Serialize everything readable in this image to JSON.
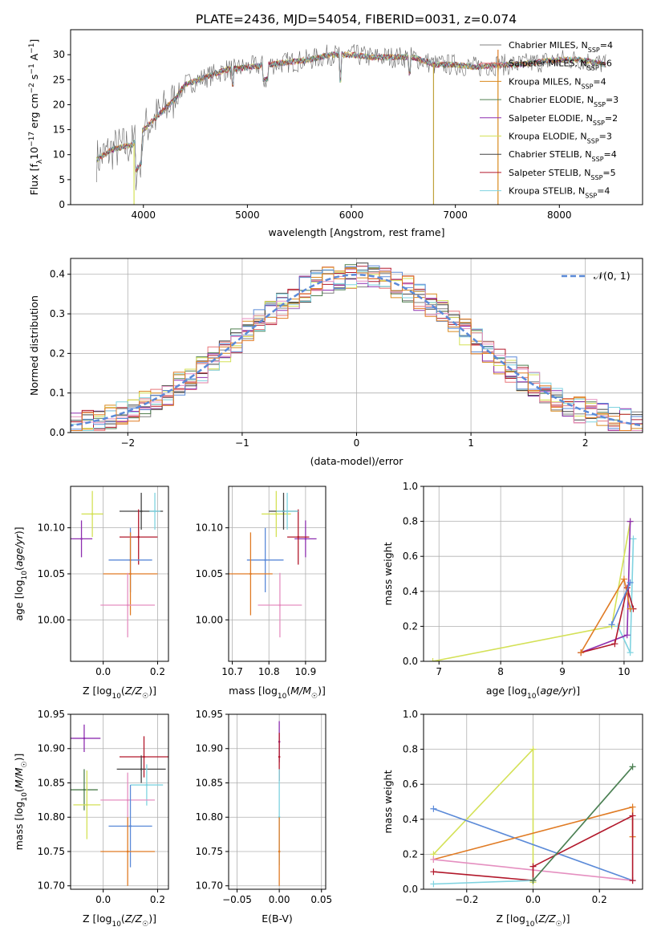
{
  "title": "PLATE=2436, MJD=54054, FIBERID=0031, z=0.074",
  "colors": {
    "Chabrier MILES": "#808080",
    "Salpeter MILES": "#e8777a",
    "Kroupa MILES": "#d98a1e",
    "Chabrier ELODIE": "#4f7f4f",
    "Salpeter ELODIE": "#8e2fb0",
    "Kroupa ELODIE": "#d4e157",
    "Chabrier STELIB": "#444444",
    "Salpeter STELIB": "#b2182b",
    "Kroupa STELIB": "#7fd3e0",
    "extra_blue": "#5b8ad8",
    "extra_orange": "#e07b24",
    "extra_pink": "#e58fc0"
  },
  "chart_data": [
    {
      "id": "spectrum",
      "type": "line",
      "title": "PLATE=2436, MJD=54054, FIBERID=0031, z=0.074",
      "xlabel": "wavelength [Angstrom, rest frame]",
      "ylabel": "Flux [f_λ 10^-17 erg cm^-2 s^-1 A^-1]",
      "xlim": [
        3300,
        8800
      ],
      "ylim": [
        0,
        35
      ],
      "xticks": [
        "4000",
        "5000",
        "6000",
        "7000",
        "8000"
      ],
      "yticks": [
        "0",
        "5",
        "10",
        "15",
        "20",
        "25",
        "30"
      ],
      "grid": false,
      "legend_position": "right",
      "legend": [
        {
          "label": "Chabrier MILES",
          "nssp": "4"
        },
        {
          "label": "Salpeter MILES",
          "nssp": "6"
        },
        {
          "label": "Kroupa MILES",
          "nssp": "4"
        },
        {
          "label": "Chabrier ELODIE",
          "nssp": "3"
        },
        {
          "label": "Salpeter ELODIE",
          "nssp": "2"
        },
        {
          "label": "Kroupa ELODIE",
          "nssp": "3"
        },
        {
          "label": "Chabrier STELIB",
          "nssp": "4"
        },
        {
          "label": "Salpeter STELIB",
          "nssp": "5"
        },
        {
          "label": "Kroupa STELIB",
          "nssp": "4"
        }
      ],
      "continuum": {
        "x": [
          3550,
          3700,
          3800,
          3900,
          4000,
          4100,
          4200,
          4300,
          4400,
          4600,
          4800,
          5000,
          5200,
          5400,
          5600,
          5800,
          6000,
          6200,
          6400,
          6600,
          6800,
          7000,
          7200,
          7400,
          7600,
          7800,
          8000,
          8200,
          8450
        ],
        "y": [
          9,
          11,
          11.5,
          12,
          15,
          17,
          19,
          21,
          24,
          25.5,
          27,
          27.5,
          28,
          28.5,
          29,
          30,
          30,
          29.5,
          29.5,
          29.5,
          28,
          28,
          27.5,
          28,
          28,
          28.5,
          29,
          29,
          28
        ]
      }
    },
    {
      "id": "residuals",
      "type": "area",
      "xlabel": "(data-model)/error",
      "ylabel": "Normed distribution",
      "xlim": [
        -2.5,
        2.5
      ],
      "ylim": [
        0,
        0.44
      ],
      "xticks": [
        "−2",
        "−1",
        "0",
        "1",
        "2"
      ],
      "yticks": [
        "0.0",
        "0.1",
        "0.2",
        "0.3",
        "0.4"
      ],
      "grid": true,
      "legend": "𝒩(0, 1)",
      "legend_position": "top-right"
    },
    {
      "id": "age-vs-Z",
      "type": "scatter",
      "xlabel": "Z [log10(Z/Z☉)]",
      "ylabel": "age [log10(age/yr)]",
      "xlim": [
        -0.12,
        0.24
      ],
      "ylim": [
        9.955,
        10.145
      ],
      "xticks": [
        "0.0",
        "0.2"
      ],
      "yticks": [
        "10.00",
        "10.05",
        "10.10"
      ],
      "grid": true,
      "points": [
        {
          "x": -0.04,
          "xerr": 0.04,
          "y": 10.115,
          "yerr": 0.025,
          "series": "Kroupa ELODIE"
        },
        {
          "x": -0.08,
          "xerr": 0.04,
          "y": 10.088,
          "yerr": 0.02,
          "series": "Salpeter ELODIE"
        },
        {
          "x": 0.14,
          "xerr": 0.08,
          "y": 10.118,
          "yerr": 0.02,
          "series": "Chabrier STELIB"
        },
        {
          "x": 0.13,
          "xerr": 0.07,
          "y": 10.09,
          "yerr": 0.03,
          "series": "Salpeter STELIB"
        },
        {
          "x": 0.1,
          "xerr": 0.08,
          "y": 10.065,
          "yerr": 0.035,
          "series": "extra_blue"
        },
        {
          "x": 0.1,
          "xerr": 0.1,
          "y": 10.05,
          "yerr": 0.045,
          "series": "extra_orange"
        },
        {
          "x": 0.09,
          "xerr": 0.1,
          "y": 10.016,
          "yerr": 0.035,
          "series": "extra_pink"
        },
        {
          "x": 0.19,
          "xerr": 0.02,
          "y": 10.118,
          "yerr": 0.02,
          "series": "Kroupa STELIB"
        }
      ]
    },
    {
      "id": "age-vs-mass",
      "type": "scatter",
      "xlabel": "mass [log10(M/M☉)]",
      "ylabel": "",
      "xlim": [
        10.69,
        10.955
      ],
      "ylim": [
        9.955,
        10.145
      ],
      "xticks": [
        "10.7",
        "10.8",
        "10.9"
      ],
      "yticks": [
        "10.00",
        "10.05",
        "10.10"
      ],
      "grid": true,
      "points": [
        {
          "x": 10.82,
          "xerr": 0.04,
          "y": 10.115,
          "yerr": 0.025,
          "series": "Kroupa ELODIE"
        },
        {
          "x": 10.9,
          "xerr": 0.03,
          "y": 10.088,
          "yerr": 0.02,
          "series": "Salpeter ELODIE"
        },
        {
          "x": 10.84,
          "xerr": 0.04,
          "y": 10.118,
          "yerr": 0.02,
          "series": "Chabrier STELIB"
        },
        {
          "x": 10.88,
          "xerr": 0.03,
          "y": 10.09,
          "yerr": 0.03,
          "series": "Salpeter STELIB"
        },
        {
          "x": 10.79,
          "xerr": 0.05,
          "y": 10.065,
          "yerr": 0.035,
          "series": "extra_blue"
        },
        {
          "x": 10.75,
          "xerr": 0.06,
          "y": 10.05,
          "yerr": 0.045,
          "series": "extra_orange"
        },
        {
          "x": 10.83,
          "xerr": 0.06,
          "y": 10.016,
          "yerr": 0.035,
          "series": "extra_pink"
        },
        {
          "x": 10.85,
          "xerr": 0.03,
          "y": 10.118,
          "yerr": 0.02,
          "series": "Kroupa STELIB"
        }
      ]
    },
    {
      "id": "weight-vs-age",
      "type": "line",
      "xlabel": "age [log10(age/yr)]",
      "ylabel": "mass weight",
      "xlim": [
        6.75,
        10.3
      ],
      "ylim": [
        0,
        1
      ],
      "xticks": [
        "7",
        "8",
        "9",
        "10"
      ],
      "yticks": [
        "0.0",
        "0.2",
        "0.4",
        "0.6",
        "0.8",
        "1.0"
      ],
      "grid": true,
      "series": [
        {
          "series": "Kroupa ELODIE",
          "x": [
            6.9,
            9.8,
            10.1
          ],
          "y": [
            0.0,
            0.2,
            0.8
          ]
        },
        {
          "series": "Kroupa STELIB",
          "x": [
            9.9,
            10.1,
            10.15
          ],
          "y": [
            0.2,
            0.05,
            0.7
          ]
        },
        {
          "series": "Salpeter ELODIE",
          "x": [
            9.3,
            10.05,
            10.1
          ],
          "y": [
            0.05,
            0.15,
            0.8
          ]
        },
        {
          "series": "Salpeter STELIB",
          "x": [
            9.3,
            9.85,
            10.05,
            10.15
          ],
          "y": [
            0.05,
            0.1,
            0.42,
            0.3
          ]
        },
        {
          "series": "extra_orange",
          "x": [
            9.3,
            10.0,
            10.1
          ],
          "y": [
            0.05,
            0.47,
            0.3
          ]
        },
        {
          "series": "extra_blue",
          "x": [
            9.8,
            10.1
          ],
          "y": [
            0.21,
            0.45
          ]
        }
      ]
    },
    {
      "id": "mass-vs-Z",
      "type": "scatter",
      "xlabel": "Z [log10(Z/Z☉)]",
      "ylabel": "mass [log10(M/M☉)]",
      "xlim": [
        -0.12,
        0.24
      ],
      "ylim": [
        10.695,
        10.95
      ],
      "xticks": [
        "0.0",
        "0.2"
      ],
      "yticks": [
        "10.70",
        "10.75",
        "10.80",
        "10.85",
        "10.90",
        "10.95"
      ],
      "grid": true,
      "points": [
        {
          "x": -0.07,
          "xerr": 0.06,
          "y": 10.915,
          "yerr": 0.02,
          "series": "Salpeter ELODIE"
        },
        {
          "x": -0.07,
          "xerr": 0.05,
          "y": 10.84,
          "yerr": 0.03,
          "series": "Chabrier ELODIE"
        },
        {
          "x": -0.06,
          "xerr": 0.05,
          "y": 10.818,
          "yerr": 0.05,
          "series": "Kroupa ELODIE"
        },
        {
          "x": 0.15,
          "xerr": 0.09,
          "y": 10.888,
          "yerr": 0.03,
          "series": "Salpeter STELIB"
        },
        {
          "x": 0.14,
          "xerr": 0.09,
          "y": 10.87,
          "yerr": 0.02,
          "series": "Chabrier STELIB"
        },
        {
          "x": 0.16,
          "xerr": 0.06,
          "y": 10.847,
          "yerr": 0.03,
          "series": "Kroupa STELIB"
        },
        {
          "x": 0.09,
          "xerr": 0.1,
          "y": 10.825,
          "yerr": 0.04,
          "series": "extra_pink"
        },
        {
          "x": 0.1,
          "xerr": 0.08,
          "y": 10.787,
          "yerr": 0.06,
          "series": "extra_blue"
        },
        {
          "x": 0.09,
          "xerr": 0.1,
          "y": 10.75,
          "yerr": 0.05,
          "series": "extra_orange"
        }
      ]
    },
    {
      "id": "mass-vs-EBV",
      "type": "scatter",
      "xlabel": "E(B-V)",
      "ylabel": "",
      "xlim": [
        -0.06,
        0.055
      ],
      "ylim": [
        10.695,
        10.95
      ],
      "xticks": [
        "−0.05",
        "0.00",
        "0.05"
      ],
      "yticks": [
        "10.70",
        "10.75",
        "10.80",
        "10.85",
        "10.90",
        "10.95"
      ],
      "grid": true,
      "points": [
        {
          "x": 0.0,
          "y": 10.91,
          "yerr": 0.03,
          "series": "Salpeter ELODIE"
        },
        {
          "x": 0.0,
          "y": 10.888,
          "yerr": 0.035,
          "series": "Salpeter STELIB"
        },
        {
          "x": 0.0,
          "y": 10.8,
          "yerr": 0.07,
          "series": "Kroupa STELIB"
        },
        {
          "x": 0.0,
          "y": 10.75,
          "yerr": 0.05,
          "series": "extra_orange"
        }
      ]
    },
    {
      "id": "weight-vs-Z",
      "type": "line",
      "xlabel": "Z [log10(Z/Z☉)]",
      "ylabel": "mass weight",
      "xlim": [
        -0.33,
        0.33
      ],
      "ylim": [
        0,
        1
      ],
      "xticks": [
        "−0.2",
        "0.0",
        "0.2"
      ],
      "yticks": [
        "0.0",
        "0.2",
        "0.4",
        "0.6",
        "0.8",
        "1.0"
      ],
      "grid": true,
      "series": [
        {
          "series": "Kroupa ELODIE",
          "x": [
            -0.3,
            0.0,
            0.0
          ],
          "y": [
            0.2,
            0.8,
            0.04
          ]
        },
        {
          "series": "extra_blue",
          "x": [
            -0.3,
            0.3
          ],
          "y": [
            0.46,
            0.05
          ]
        },
        {
          "series": "extra_orange",
          "x": [
            -0.3,
            0.3,
            0.3
          ],
          "y": [
            0.17,
            0.47,
            0.3
          ]
        },
        {
          "series": "extra_pink",
          "x": [
            -0.3,
            0.3
          ],
          "y": [
            0.17,
            0.05
          ]
        },
        {
          "series": "Salpeter STELIB",
          "x": [
            -0.3,
            0.0,
            0.0,
            0.3,
            0.3
          ],
          "y": [
            0.1,
            0.05,
            0.13,
            0.42,
            0.05
          ]
        },
        {
          "series": "Kroupa STELIB",
          "x": [
            -0.3,
            0.0,
            0.3
          ],
          "y": [
            0.03,
            0.05,
            0.7
          ]
        },
        {
          "series": "Chabrier ELODIE",
          "x": [
            0.0,
            0.3
          ],
          "y": [
            0.05,
            0.7
          ]
        }
      ]
    }
  ]
}
